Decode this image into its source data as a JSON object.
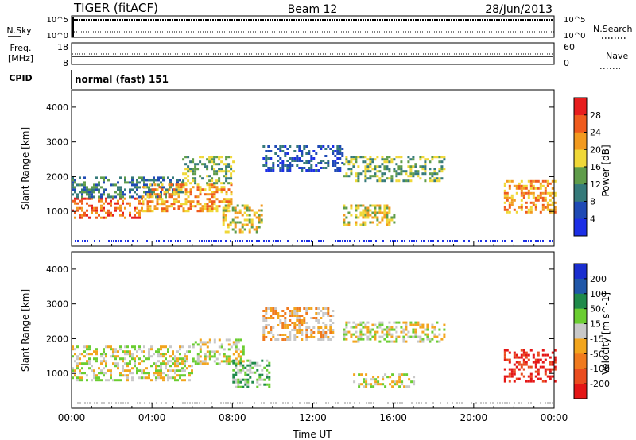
{
  "header": {
    "station": "TIGER (fitACF)",
    "beam": "Beam 12",
    "date": "28/Jun/2013"
  },
  "top_panels": {
    "nsky_label": "N.Sky",
    "nsky_ticks_left": [
      "10^5",
      "10^0"
    ],
    "nsky_ticks_right": [
      "10^5",
      "10^0"
    ],
    "nsearch_label": "N.Search",
    "freq_label": "Freq.",
    "freq_unit": "[MHz]",
    "freq_ticks_left": [
      "18",
      "8"
    ],
    "nave_ticks_right": [
      "60",
      "0"
    ],
    "nave_label": "Nave",
    "cpid_label": "CPID",
    "cpid_value": "normal (fast) 151"
  },
  "chart_data": [
    {
      "type": "heatmap",
      "name": "power",
      "xlabel": "",
      "ylabel": "Slant Range [km]",
      "xlim": [
        0,
        24
      ],
      "ylim": [
        0,
        4500
      ],
      "yticks": [
        "1000",
        "2000",
        "3000",
        "4000"
      ],
      "colorbar_label": "Power [dB]",
      "colorbar_ticks": [
        "4",
        "8",
        "12",
        "16",
        "20",
        "24",
        "28"
      ],
      "colors": [
        "#1c2fe6",
        "#1f4ab5",
        "#357a7a",
        "#5f9c4a",
        "#f0d838",
        "#f29a1f",
        "#ef5b1d",
        "#e71d1d"
      ],
      "features": [
        {
          "t": [
            0.0,
            3.5
          ],
          "r": [
            800,
            1400
          ],
          "level": 6
        },
        {
          "t": [
            0.0,
            5.5
          ],
          "r": [
            1400,
            2000
          ],
          "level": 2
        },
        {
          "t": [
            3.5,
            8.0
          ],
          "r": [
            1000,
            1800
          ],
          "level": 5
        },
        {
          "t": [
            5.5,
            8.0
          ],
          "r": [
            1800,
            2600
          ],
          "level": 3
        },
        {
          "t": [
            7.5,
            9.5
          ],
          "r": [
            400,
            1200
          ],
          "level": 4
        },
        {
          "t": [
            9.5,
            13.5
          ],
          "r": [
            2200,
            2900
          ],
          "level": 1
        },
        {
          "t": [
            13.5,
            18.5
          ],
          "r": [
            1900,
            2600
          ],
          "level": 3
        },
        {
          "t": [
            13.5,
            16.0
          ],
          "r": [
            600,
            1200
          ],
          "level": 4
        },
        {
          "t": [
            21.5,
            24.0
          ],
          "r": [
            1000,
            1900
          ],
          "level": 5
        }
      ]
    },
    {
      "type": "heatmap",
      "name": "velocity",
      "xlabel": "Time UT",
      "ylabel": "Slant Range [km]",
      "xlim": [
        0,
        24
      ],
      "ylim": [
        0,
        4500
      ],
      "xticks": [
        "00:00",
        "04:00",
        "08:00",
        "12:00",
        "16:00",
        "20:00",
        "00:00"
      ],
      "yticks": [
        "1000",
        "2000",
        "3000",
        "4000"
      ],
      "colorbar_label": "Velocity [m s^-1]",
      "colorbar_ticks": [
        "200",
        "100",
        "50",
        "15",
        "-15",
        "-50",
        "-100",
        "-200"
      ],
      "colors": [
        "#1a2ecf",
        "#2057a8",
        "#1f8a4a",
        "#6acd31",
        "#c8c8c8",
        "#f2a51d",
        "#f07a1e",
        "#ea4d1f",
        "#e41616"
      ],
      "features": [
        {
          "t": [
            0.0,
            6.0
          ],
          "r": [
            800,
            1800
          ],
          "level": 4
        },
        {
          "t": [
            6.0,
            8.5
          ],
          "r": [
            1300,
            2000
          ],
          "level": 4
        },
        {
          "t": [
            8.0,
            9.8
          ],
          "r": [
            600,
            1400
          ],
          "level": 3
        },
        {
          "t": [
            9.5,
            13.0
          ],
          "r": [
            2000,
            2900
          ],
          "level": 5
        },
        {
          "t": [
            13.5,
            18.5
          ],
          "r": [
            1900,
            2500
          ],
          "level": 4
        },
        {
          "t": [
            14.0,
            17.0
          ],
          "r": [
            600,
            1000
          ],
          "level": 4
        },
        {
          "t": [
            21.5,
            24.0
          ],
          "r": [
            800,
            1700
          ],
          "level": 8
        }
      ]
    }
  ]
}
